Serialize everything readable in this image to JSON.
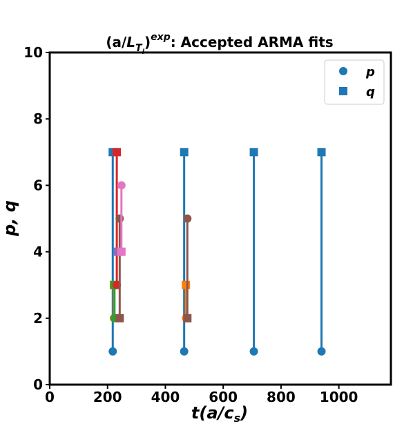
{
  "chart_data": {
    "type": "scatter",
    "title": "(a/L_Ti)^exp: Accepted ARMA fits",
    "title_parts": {
      "open": "(a/",
      "L": "L",
      "T": "T",
      "i": "i",
      "close": ")",
      "exp": "exp",
      "rest": ": Accepted ARMA fits"
    },
    "xlabel": "t(a/c_s)",
    "xlabel_parts": {
      "main": "t(a/c",
      "sub": "s",
      "close": ")"
    },
    "ylabel": "p, q",
    "xlim": [
      0,
      1180
    ],
    "ylim": [
      0,
      10
    ],
    "xticks": [
      0,
      200,
      400,
      600,
      800,
      1000
    ],
    "yticks": [
      0,
      2,
      4,
      6,
      8,
      10
    ],
    "grid": false,
    "legend": {
      "position": "top-right",
      "entries": [
        {
          "label": "p",
          "marker": "circle",
          "color": "#1f77b4"
        },
        {
          "label": "q",
          "marker": "square",
          "color": "#1f77b4"
        }
      ]
    },
    "series": [
      {
        "color": "#1f77b4",
        "x": 218,
        "p": 1,
        "q": 7
      },
      {
        "color": "#1f77b4",
        "x": 465,
        "p": 1,
        "q": 7
      },
      {
        "color": "#1f77b4",
        "x": 706,
        "p": 1,
        "q": 7
      },
      {
        "color": "#1f77b4",
        "x": 940,
        "p": 1,
        "q": 7
      },
      {
        "color": "#ff7f0e",
        "x": 222,
        "p": 2,
        "q": 3
      },
      {
        "color": "#ff7f0e",
        "x": 471,
        "p": 2,
        "q": 3
      },
      {
        "color": "#2ca02c",
        "x": 224,
        "p": 2,
        "q": 3
      },
      {
        "color": "#d62728",
        "x": 232,
        "p": 3,
        "q": 7
      },
      {
        "color": "#9467bd",
        "x": 236,
        "p": 4,
        "q": 4
      },
      {
        "color": "#8c564b",
        "x": 242,
        "p": 5,
        "q": 2
      },
      {
        "color": "#8c564b",
        "x": 476,
        "p": 5,
        "q": 2
      },
      {
        "color": "#e377c2",
        "x": 248,
        "p": 6,
        "q": 4
      }
    ]
  }
}
